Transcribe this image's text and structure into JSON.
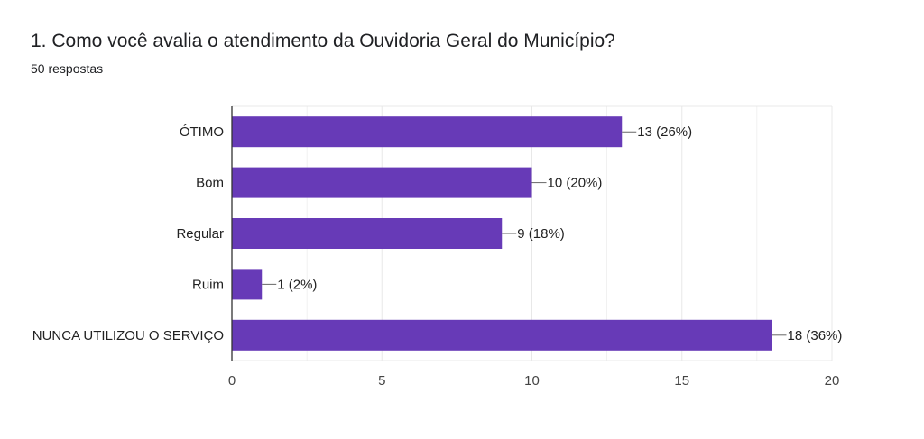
{
  "header": {
    "title": "1. Como você avalia o atendimento da Ouvidoria Geral do Município?",
    "responses": "50 respostas"
  },
  "colors": {
    "bar": "#673ab7",
    "grid": "#e8e8e8",
    "axis": "#333333"
  },
  "chart_data": {
    "type": "bar",
    "orientation": "horizontal",
    "categories": [
      "ÓTIMO",
      "Bom",
      "Regular",
      "Ruim",
      "NUNCA UTILIZOU O SERVIÇO"
    ],
    "values": [
      13,
      10,
      9,
      1,
      18
    ],
    "data_labels": [
      "13 (26%)",
      "10 (20%)",
      "9 (18%)",
      "1 (2%)",
      "18 (36%)"
    ],
    "xlim": [
      0,
      20
    ],
    "xticks": [
      0,
      5,
      10,
      15,
      20
    ],
    "grid": true
  }
}
